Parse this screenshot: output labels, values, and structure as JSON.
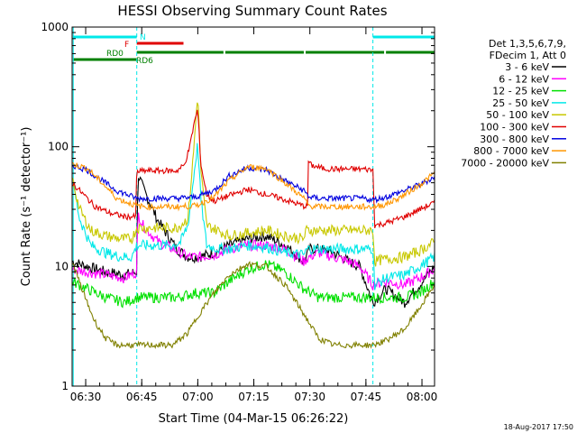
{
  "chart_data": {
    "type": "line",
    "title": "HESSI Observing Summary Count Rates",
    "xlabel": "Start Time (04-Mar-15 06:26:22)",
    "ylabel": "Count Rate (s⁻¹ detector⁻¹)",
    "yscale": "log",
    "ylim": [
      1,
      1000
    ],
    "xlim_minutes": [
      0,
      97
    ],
    "x_ticks": [
      {
        "label": "06:30",
        "minutes": 3.63
      },
      {
        "label": "06:45",
        "minutes": 18.63
      },
      {
        "label": "07:00",
        "minutes": 33.63
      },
      {
        "label": "07:15",
        "minutes": 48.63
      },
      {
        "label": "07:30",
        "minutes": 63.63
      },
      {
        "label": "07:45",
        "minutes": 78.63
      },
      {
        "label": "08:00",
        "minutes": 93.63
      }
    ],
    "y_ticks": [
      {
        "label": "1",
        "value": 1
      },
      {
        "label": "10",
        "value": 10
      },
      {
        "label": "100",
        "value": 100
      },
      {
        "label": "1000",
        "value": 1000
      }
    ],
    "legend_header": [
      "Det 1,3,5,6,7,9,",
      "FDecim 1, Att 0"
    ],
    "legend_position": "right",
    "grid": false,
    "footer_date": "18-Aug-2017 17:50",
    "time_markers_minutes": [
      0.3,
      17.3,
      80.5,
      97.0
    ],
    "flag_labels": {
      "N": "N",
      "F": "F",
      "RD0": "RD0",
      "RD6": "RD6"
    },
    "flag_bars": [
      {
        "flag": "N",
        "color": "#00e8e8",
        "segments": [
          [
            0.3,
            17.3
          ],
          [
            80.5,
            97.0
          ]
        ]
      },
      {
        "flag": "F",
        "color": "#e00000",
        "segments": [
          [
            17.3,
            29.8
          ]
        ]
      },
      {
        "flag": "RD0",
        "color": "#008000",
        "segments": [
          [
            0.3,
            17.3
          ]
        ]
      },
      {
        "flag": "RD6",
        "color": "#008000",
        "segments": [
          [
            17.3,
            40.5
          ],
          [
            41.0,
            62.0
          ],
          [
            62.5,
            83.5
          ],
          [
            84.0,
            97.0
          ]
        ]
      }
    ],
    "series": [
      {
        "name": "3 - 6 keV",
        "color": "#000000",
        "x": [
          0,
          4,
          9,
          14,
          17.3,
          17.6,
          19,
          23,
          28,
          31,
          34,
          38,
          42,
          47,
          52,
          57,
          62,
          63.5,
          66,
          70,
          74,
          77,
          80.5,
          84,
          89,
          93,
          97
        ],
        "y": [
          11,
          10,
          9,
          8.5,
          9,
          60,
          45,
          24,
          14,
          12,
          12,
          13,
          15,
          17,
          18,
          15,
          11,
          14,
          14,
          13,
          11,
          10,
          5,
          6.5,
          5,
          7,
          10
        ]
      },
      {
        "name": "6 - 12 keV",
        "color": "#ff00ff",
        "x": [
          0,
          4,
          9,
          14,
          17.3,
          17.6,
          19,
          23,
          28,
          31,
          34,
          38,
          42,
          47,
          52,
          57,
          62,
          63.5,
          66,
          70,
          74,
          77,
          80.5,
          84,
          89,
          93,
          97
        ],
        "y": [
          9.5,
          9,
          8.5,
          8,
          9,
          28,
          22,
          16,
          13.5,
          12,
          12,
          12.5,
          14,
          15,
          15,
          14,
          11,
          12,
          13,
          12,
          11,
          10,
          7,
          7.5,
          7,
          8,
          9.5
        ]
      },
      {
        "name": "12 - 25 keV",
        "color": "#00e000",
        "x": [
          0,
          4,
          9,
          14,
          17.3,
          22,
          28,
          33,
          38,
          42,
          47,
          52,
          57,
          62,
          66,
          70,
          75,
          80.5,
          84,
          89,
          93,
          97
        ],
        "y": [
          7.5,
          6.5,
          5.5,
          5,
          5.5,
          5.5,
          5.5,
          6,
          6,
          7.5,
          9.5,
          10.5,
          9,
          6.5,
          5.5,
          5.5,
          5.5,
          5.5,
          5.5,
          5.5,
          6,
          7.5
        ]
      },
      {
        "name": "25 - 50 keV",
        "color": "#00e8e8",
        "x": [
          0,
          2,
          5,
          9,
          13,
          16,
          17.3,
          19,
          23,
          27,
          29,
          31,
          32,
          33,
          33.6,
          34.5,
          36,
          39,
          42,
          47,
          52,
          57,
          62,
          63,
          66,
          70,
          74,
          78,
          80.5,
          81,
          84,
          89,
          93,
          97
        ],
        "y": [
          55,
          25,
          15,
          13,
          12,
          12,
          15,
          15,
          15,
          15,
          16,
          22,
          40,
          75,
          105,
          35,
          15,
          14,
          14,
          15,
          14.5,
          13,
          12.5,
          14,
          14,
          14,
          14,
          14,
          14,
          7,
          8,
          8.5,
          10,
          12
        ]
      },
      {
        "name": "50 - 100 keV",
        "color": "#c8c800",
        "x": [
          0,
          2,
          5,
          9,
          13,
          16,
          17.3,
          20,
          24,
          28,
          31,
          32.5,
          33.6,
          34.5,
          36,
          39,
          42,
          47,
          52,
          57,
          62,
          62.6,
          66,
          70,
          74,
          78,
          80.5,
          81,
          84,
          89,
          93,
          97
        ],
        "y": [
          55,
          30,
          20,
          18,
          17,
          17,
          21,
          21,
          21,
          21,
          25,
          90,
          280,
          60,
          22,
          20,
          18,
          19,
          20,
          18,
          17,
          20,
          20,
          20,
          20,
          20,
          20,
          11,
          11.5,
          12,
          13.5,
          16
        ]
      },
      {
        "name": "100 - 300 keV",
        "color": "#e00000",
        "x": [
          0,
          3,
          6,
          10,
          14,
          17,
          17.3,
          20,
          24,
          28,
          30,
          31.5,
          32.5,
          33.6,
          34.5,
          36,
          38,
          42,
          47,
          52,
          57,
          62,
          63,
          62.2,
          64,
          67,
          70,
          74,
          78,
          80.5,
          81,
          84,
          89,
          93,
          97
        ],
        "y": [
          50,
          40,
          32,
          28,
          26,
          26,
          62,
          63,
          63,
          63,
          70,
          100,
          150,
          205,
          70,
          40,
          35,
          39,
          44,
          40,
          36,
          32,
          32,
          85,
          70,
          66,
          65,
          65,
          65,
          64,
          22,
          23,
          26,
          30,
          34
        ]
      },
      {
        "name": "300 - 800 keV",
        "color": "#0000e0",
        "x": [
          0,
          4,
          8,
          12,
          17.3,
          20,
          24,
          28,
          33,
          38,
          42,
          47,
          52,
          57,
          62,
          63.5,
          66,
          70,
          74,
          78,
          80.5,
          84,
          88,
          93,
          97
        ],
        "y": [
          70,
          64,
          52,
          43,
          37,
          37,
          37,
          37,
          38,
          43,
          57,
          67,
          64,
          52,
          43,
          38,
          37,
          37,
          37,
          37,
          36,
          38,
          42,
          48,
          56
        ]
      },
      {
        "name": "800 - 7000 keV",
        "color": "#ff9600",
        "x": [
          0,
          4,
          8,
          12,
          17.3,
          20,
          24,
          28,
          33,
          38,
          42,
          47,
          52,
          57,
          62,
          63.5,
          66,
          70,
          74,
          78,
          80.5,
          84,
          88,
          93,
          97
        ],
        "y": [
          72,
          66,
          50,
          37,
          32,
          31.5,
          31.5,
          31.5,
          32,
          38,
          52,
          68,
          66,
          50,
          37,
          32,
          31.5,
          31.5,
          31.5,
          31.5,
          31.5,
          33,
          38,
          48,
          60
        ]
      },
      {
        "name": "7000 - 20000 keV",
        "color": "#808000",
        "x": [
          0,
          3,
          6,
          9,
          12,
          17.3,
          22,
          27,
          31,
          34,
          38,
          42,
          47,
          52,
          57,
          62,
          66,
          70,
          75,
          80.5,
          84,
          89,
          93,
          97
        ],
        "y": [
          11,
          6,
          3.5,
          2.5,
          2.2,
          2.2,
          2.2,
          2.2,
          2.8,
          4,
          6,
          8.5,
          10.5,
          10,
          7,
          4,
          2.5,
          2.2,
          2.2,
          2.2,
          2.4,
          3,
          4.5,
          7
        ]
      }
    ]
  }
}
